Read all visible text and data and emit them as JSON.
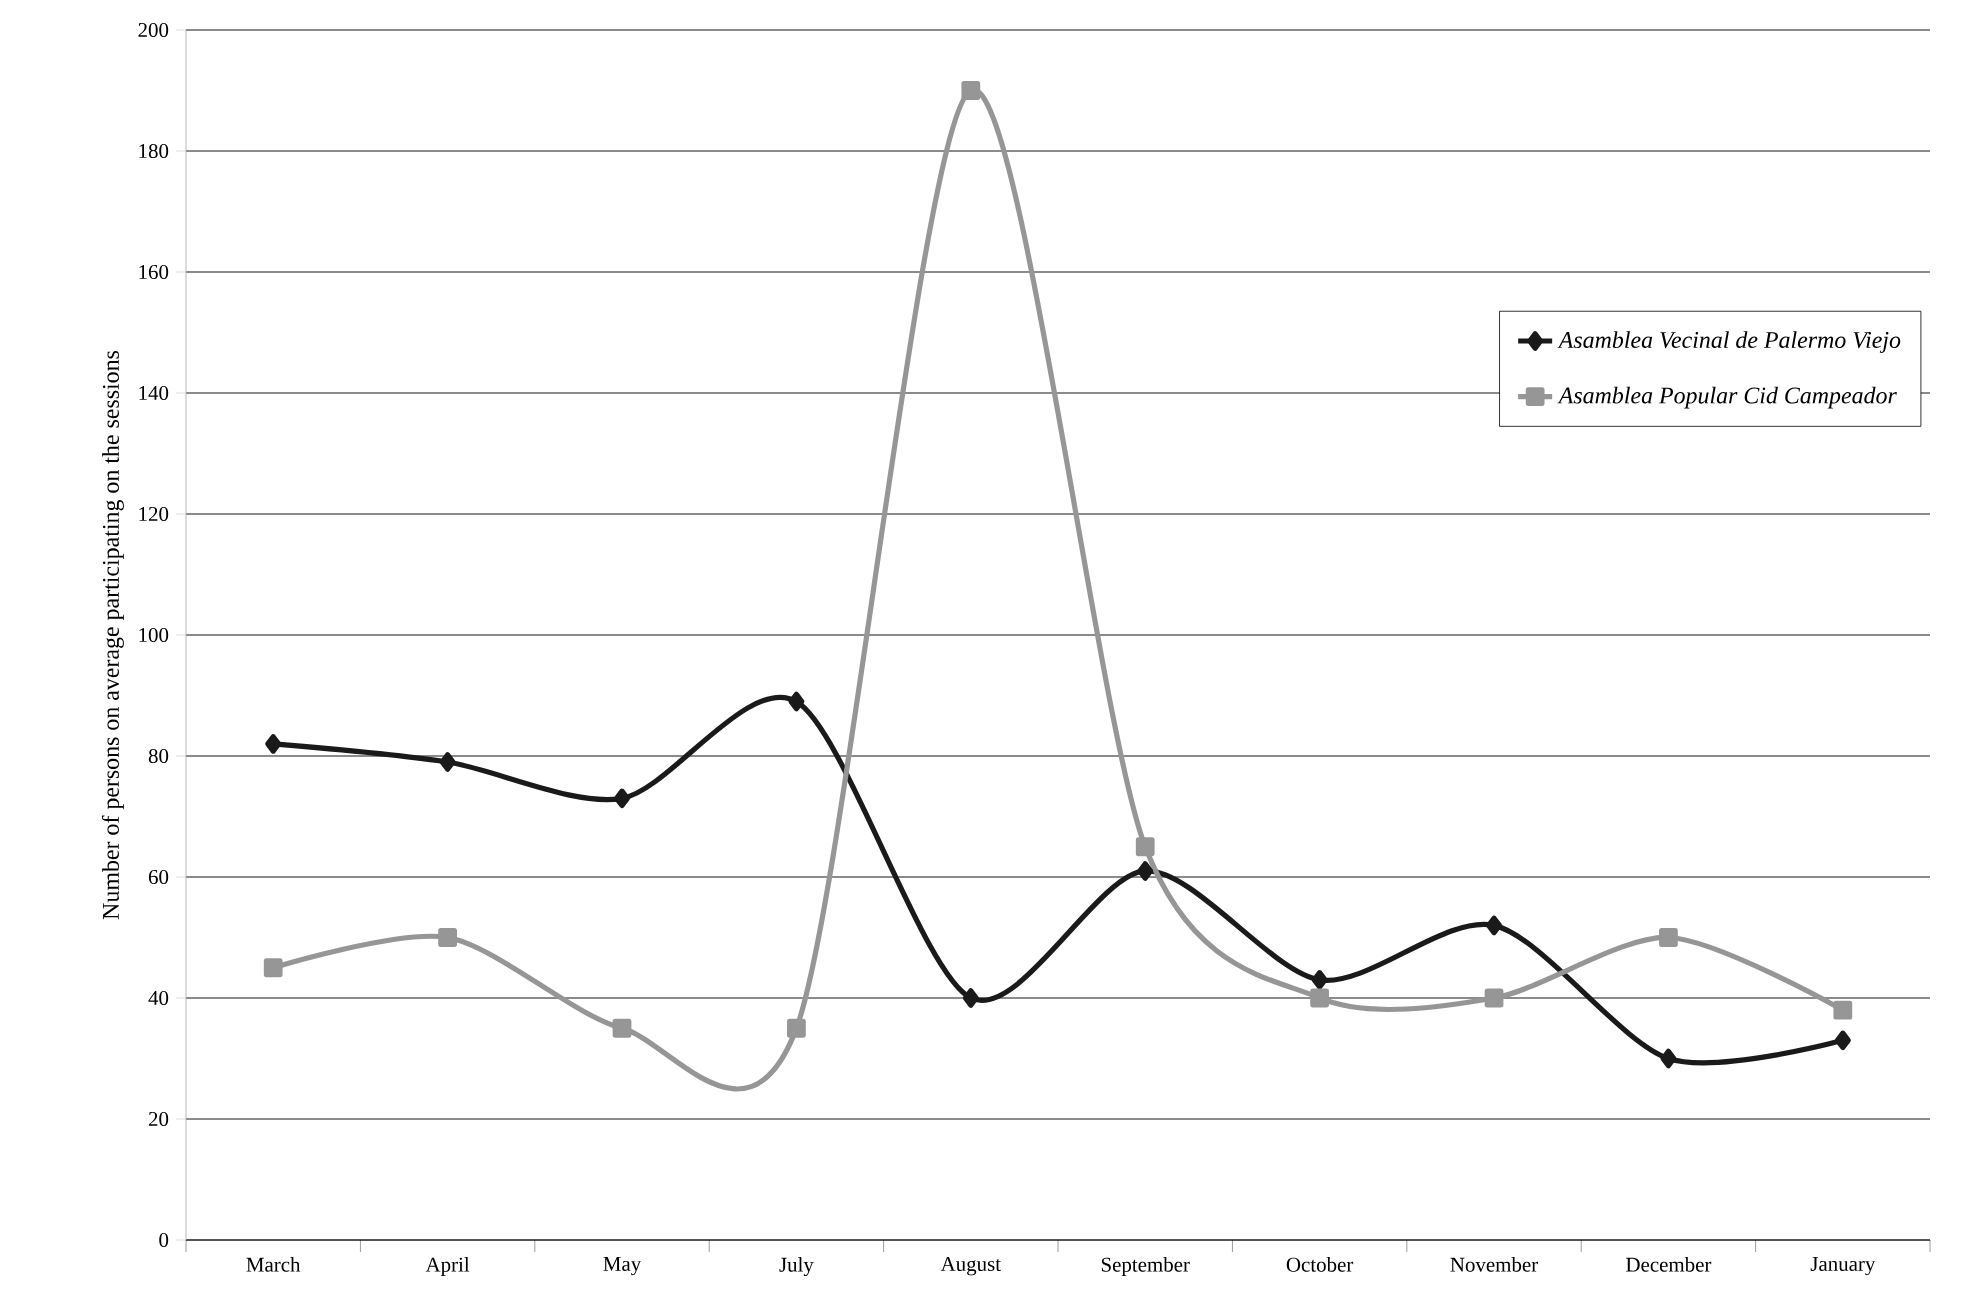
{
  "chart_data": {
    "type": "line",
    "ylabel": "Number of persons on average participating on the sessions",
    "categories": [
      "March",
      "April",
      "May",
      "July",
      "August",
      "September",
      "October",
      "November",
      "December",
      "January"
    ],
    "series": [
      {
        "name": "Asamblea Vecinal de Palermo Viejo",
        "color": "#1a1a1a",
        "marker": "diamond",
        "values": [
          82,
          79,
          73,
          89,
          40,
          61,
          43,
          52,
          30,
          33
        ]
      },
      {
        "name": "Asamblea Popular Cid Campeador",
        "color": "#969696",
        "marker": "square",
        "values": [
          45,
          50,
          35,
          35,
          190,
          65,
          40,
          40,
          50,
          38
        ]
      }
    ],
    "ylim": [
      0,
      200
    ],
    "yticks": [
      0,
      20,
      40,
      60,
      80,
      100,
      120,
      140,
      160,
      180,
      200
    ],
    "grid": "y",
    "legend": "right",
    "line_style": "solid"
  }
}
